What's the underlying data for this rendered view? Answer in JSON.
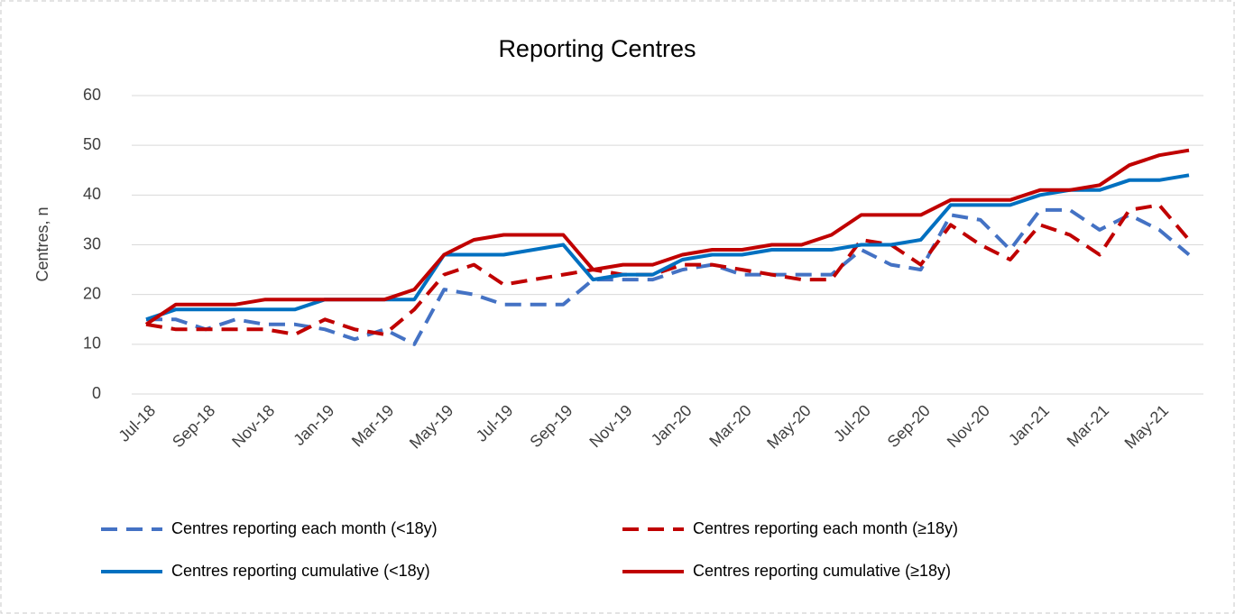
{
  "chart_data": {
    "type": "line",
    "title": "Reporting Centres",
    "y_label": "Centres, n",
    "categories": [
      "Jul-18",
      null,
      "Sep-18",
      null,
      "Nov-18",
      null,
      "Jan-19",
      null,
      "Mar-19",
      null,
      "May-19",
      null,
      "Jul-19",
      null,
      "Sep-19",
      null,
      "Nov-19",
      null,
      "Jan-20",
      null,
      "Mar-20",
      null,
      "May-20",
      null,
      "Jul-20",
      null,
      "Sep-20",
      null,
      "Nov-20",
      null,
      "Jan-21",
      null,
      "Mar-21",
      null,
      "May-21",
      null
    ],
    "series": [
      {
        "name": "Centres reporting each month (<18y)",
        "color": "#4472c4",
        "line_style": "dashed",
        "values": [
          15,
          15,
          13,
          15,
          14,
          14,
          13,
          11,
          13,
          10,
          21,
          20,
          18,
          18,
          18,
          23,
          23,
          23,
          25,
          26,
          24,
          24,
          24,
          24,
          29,
          26,
          25,
          36,
          35,
          29,
          37,
          37,
          33,
          36,
          33,
          28
        ]
      },
      {
        "name": "Centres reporting each month  (≥18y)",
        "color": "#c00000",
        "line_style": "dashed",
        "values": [
          14,
          13,
          13,
          13,
          13,
          12,
          15,
          13,
          12,
          17,
          24,
          26,
          22,
          23,
          24,
          25,
          24,
          24,
          26,
          26,
          25,
          24,
          23,
          23,
          31,
          30,
          26,
          34,
          30,
          27,
          34,
          32,
          28,
          37,
          38,
          31
        ]
      },
      {
        "name": "Centres reporting cumulative (<18y)",
        "color": "#0070c0",
        "line_style": "solid",
        "values": [
          15,
          17,
          17,
          17,
          17,
          17,
          19,
          19,
          19,
          19,
          28,
          28,
          28,
          29,
          30,
          23,
          24,
          24,
          27,
          28,
          28,
          29,
          29,
          29,
          30,
          30,
          31,
          38,
          38,
          38,
          40,
          41,
          41,
          43,
          43,
          44
        ]
      },
      {
        "name": "Centres reporting cumulative (≥18y)",
        "color": "#c00000",
        "line_style": "solid",
        "values": [
          14,
          18,
          18,
          18,
          19,
          19,
          19,
          19,
          19,
          21,
          28,
          31,
          32,
          32,
          32,
          25,
          26,
          26,
          28,
          29,
          29,
          30,
          30,
          32,
          36,
          36,
          36,
          39,
          39,
          39,
          41,
          41,
          42,
          46,
          48,
          49
        ]
      }
    ],
    "ylim": [
      0,
      60
    ],
    "yticks": [
      0,
      10,
      20,
      30,
      40,
      50,
      60
    ],
    "grid": true,
    "legend": "bottom"
  }
}
